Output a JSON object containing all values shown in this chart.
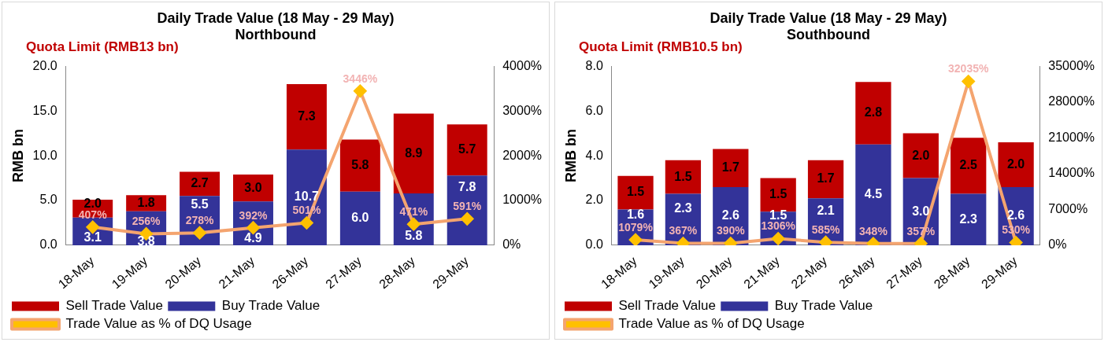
{
  "chart_data": [
    {
      "type": "bar",
      "title": "Daily Trade Value (18 May - 29 May)",
      "subtitle": "Northbound",
      "ylabel": "RMB bn",
      "stacked": true,
      "legend": "bottom",
      "marker": "diamond",
      "annotations": [
        "Quota Limit (RMB13 bn)"
      ],
      "categories": [
        "18-May",
        "19-May",
        "20-May",
        "21-May",
        "26-May",
        "27-May",
        "28-May",
        "29-May"
      ],
      "ylim": [
        0,
        20
      ],
      "yticks": [
        {
          "value": 0,
          "label": "0.0"
        },
        {
          "value": 5,
          "label": "5.0"
        },
        {
          "value": 10,
          "label": "10.0"
        },
        {
          "value": 15,
          "label": "15.0"
        },
        {
          "value": 20,
          "label": "20.0"
        }
      ],
      "y2lim": [
        0,
        4000
      ],
      "y2ticks": [
        {
          "value": 0,
          "label": "0%"
        },
        {
          "value": 1000,
          "label": "1000%"
        },
        {
          "value": 2000,
          "label": "2000%"
        },
        {
          "value": 3000,
          "label": "3000%"
        },
        {
          "value": 4000,
          "label": "4000%"
        }
      ],
      "series": [
        {
          "name": "Buy Trade Value",
          "color": "#333399",
          "values": [
            3.1,
            3.8,
            5.5,
            4.9,
            10.7,
            6.0,
            5.8,
            7.8
          ],
          "value_labels": [
            "3.1",
            "3.8",
            "5.5",
            "4.9",
            "10.7",
            "6.0",
            "5.8",
            "7.8"
          ]
        },
        {
          "name": "Sell Trade Value",
          "color": "#c00000",
          "values": [
            2.0,
            1.8,
            2.7,
            3.0,
            7.3,
            5.8,
            8.9,
            5.7
          ],
          "value_labels": [
            "2.0",
            "1.8",
            "2.7",
            "3.0",
            "7.3",
            "5.8",
            "8.9",
            "5.7"
          ]
        },
        {
          "name": "Trade Value as % of DQ Usage",
          "type": "line",
          "axis": "y2",
          "color": "#f4a46f",
          "values": [
            407,
            256,
            278,
            392,
            501,
            3446,
            471,
            591
          ],
          "value_labels": [
            "407%",
            "256%",
            "278%",
            "392%",
            "501%",
            "3446%",
            "471%",
            "591%"
          ]
        }
      ]
    },
    {
      "type": "bar",
      "title": "Daily Trade Value (18 May - 29 May)",
      "subtitle": "Southbound",
      "ylabel": "RMB bn",
      "stacked": true,
      "legend": "bottom",
      "marker": "diamond",
      "annotations": [
        "Quota Limit (RMB10.5 bn)"
      ],
      "categories": [
        "18-May",
        "19-May",
        "20-May",
        "21-May",
        "22-May",
        "26-May",
        "27-May",
        "28-May",
        "29-May"
      ],
      "ylim": [
        0,
        8
      ],
      "yticks": [
        {
          "value": 0,
          "label": "0.0"
        },
        {
          "value": 2,
          "label": "2.0"
        },
        {
          "value": 4,
          "label": "4.0"
        },
        {
          "value": 6,
          "label": "6.0"
        },
        {
          "value": 8,
          "label": "8.0"
        }
      ],
      "y2lim": [
        0,
        35000
      ],
      "y2ticks": [
        {
          "value": 0,
          "label": "0%"
        },
        {
          "value": 7000,
          "label": "7000%"
        },
        {
          "value": 14000,
          "label": "14000%"
        },
        {
          "value": 21000,
          "label": "21000%"
        },
        {
          "value": 28000,
          "label": "28000%"
        },
        {
          "value": 35000,
          "label": "35000%"
        }
      ],
      "series": [
        {
          "name": "Buy Trade Value",
          "color": "#333399",
          "values": [
            1.6,
            2.3,
            2.6,
            1.5,
            2.1,
            4.5,
            3.0,
            2.3,
            2.6
          ],
          "value_labels": [
            "1.6",
            "2.3",
            "2.6",
            "1.5",
            "2.1",
            "4.5",
            "3.0",
            "2.3",
            "2.6"
          ]
        },
        {
          "name": "Sell Trade Value",
          "color": "#c00000",
          "values": [
            1.5,
            1.5,
            1.7,
            1.5,
            1.7,
            2.8,
            2.0,
            2.5,
            2.0
          ],
          "value_labels": [
            "1.5",
            "1.5",
            "1.7",
            "1.5",
            "1.7",
            "2.8",
            "2.0",
            "2.5",
            "2.0"
          ]
        },
        {
          "name": "Trade Value as % of DQ Usage",
          "type": "line",
          "axis": "y2",
          "color": "#f4a46f",
          "values": [
            1079,
            367,
            390,
            1306,
            585,
            348,
            357,
            32035,
            530
          ],
          "value_labels": [
            "1079%",
            "367%",
            "390%",
            "1306%",
            "585%",
            "348%",
            "357%",
            "32035%",
            "530%"
          ]
        }
      ]
    }
  ]
}
